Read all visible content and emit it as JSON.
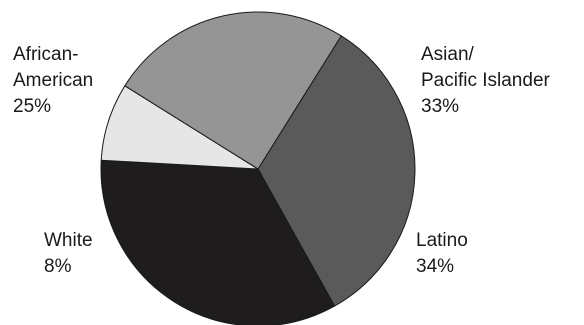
{
  "chart_data": {
    "type": "pie",
    "slices": [
      {
        "label_lines": [
          "Asian/",
          "Pacific Islander"
        ],
        "value": 33,
        "value_label": "33%",
        "color": "#5a5a5a"
      },
      {
        "label_lines": [
          "Latino"
        ],
        "value": 34,
        "value_label": "34%",
        "color": "#1e1c1c"
      },
      {
        "label_lines": [
          "White"
        ],
        "value": 8,
        "value_label": "8%",
        "color": "#e6e6e6"
      },
      {
        "label_lines": [
          "African-",
          "American"
        ],
        "value": 25,
        "value_label": "25%",
        "color": "#959595"
      }
    ],
    "stroke_color": "#1a1a1a",
    "legend": "none"
  }
}
